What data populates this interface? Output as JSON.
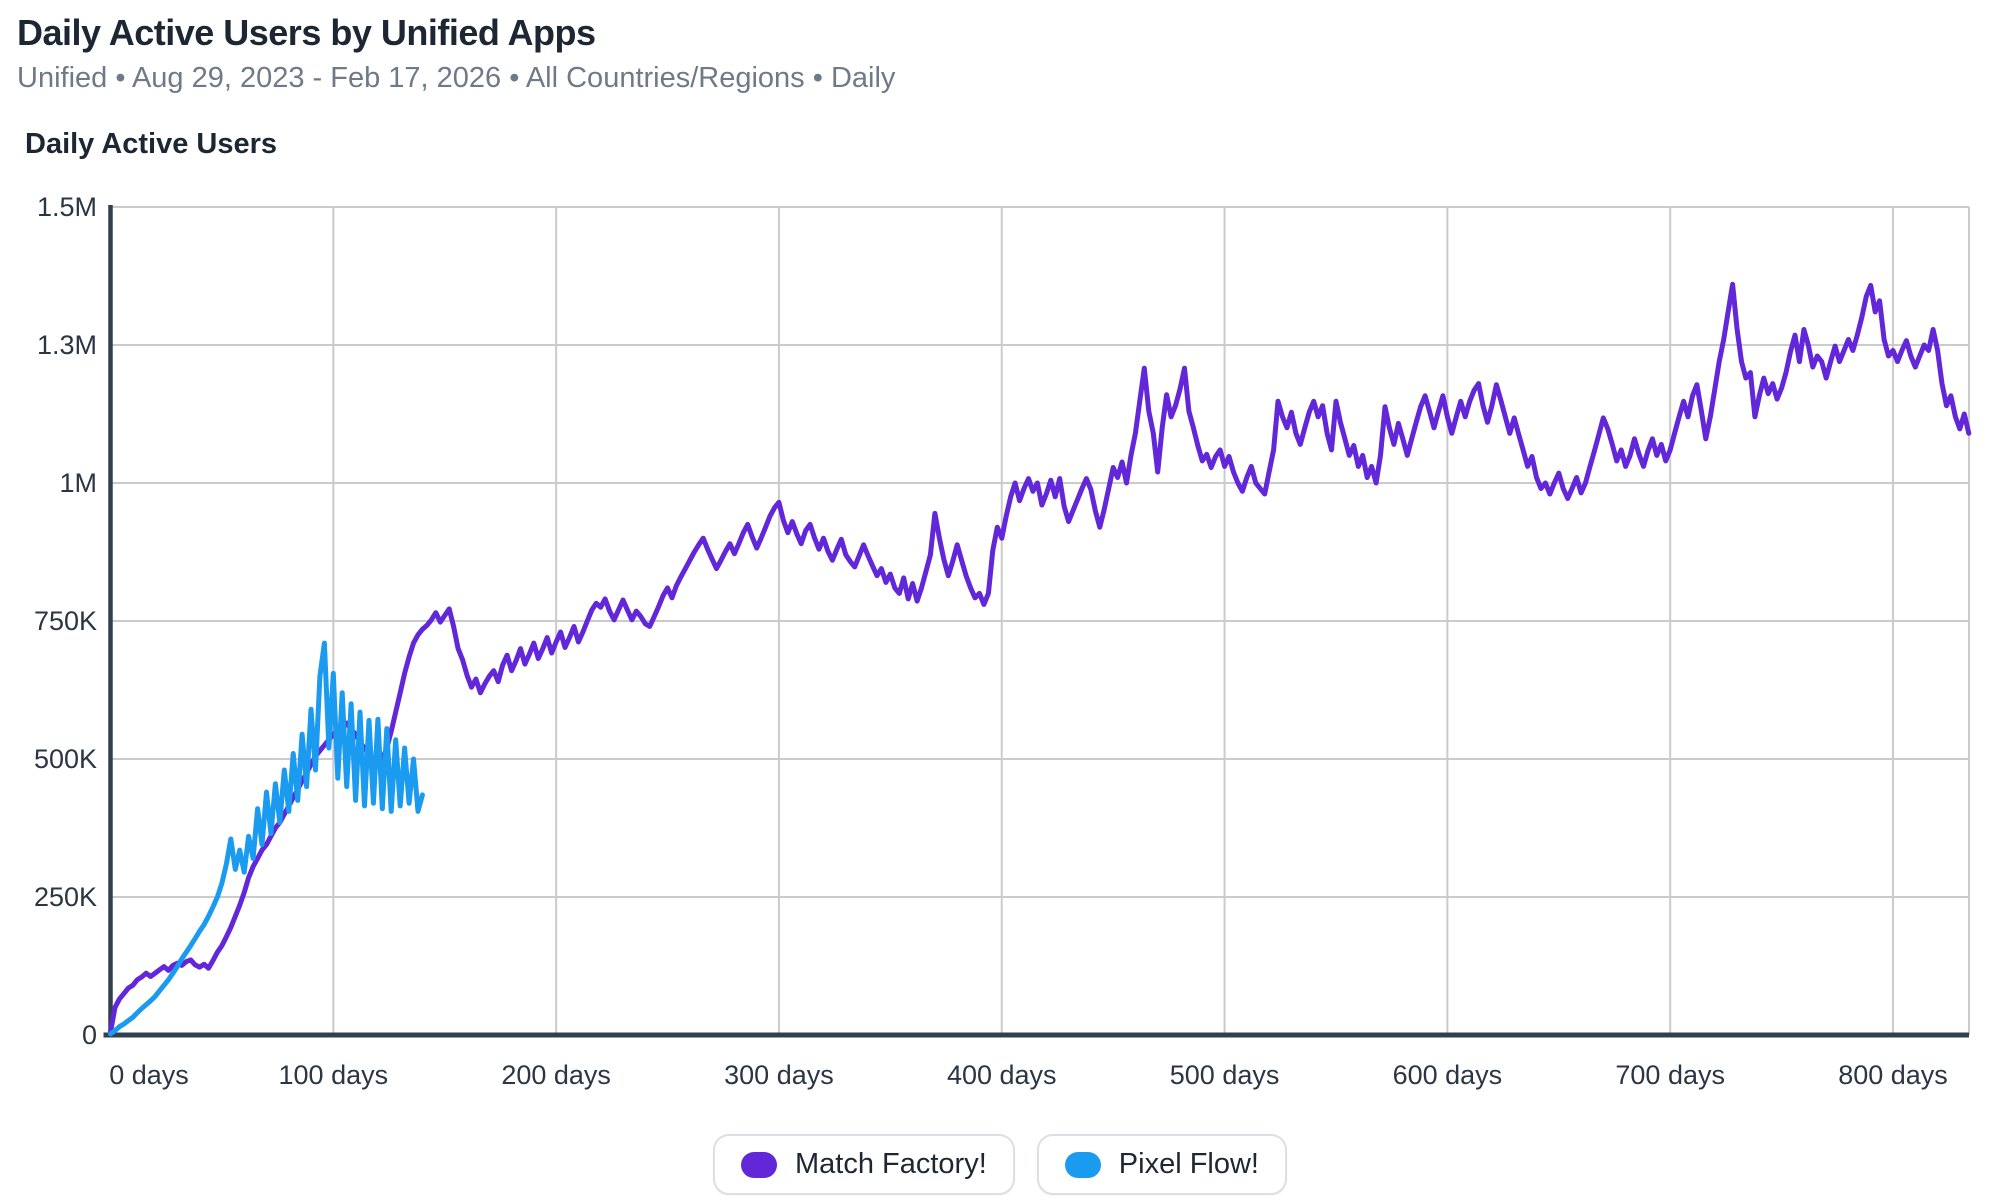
{
  "header": {
    "title": "Daily Active Users by Unified Apps",
    "subtitle": "Unified • Aug 29, 2023 - Feb 17, 2026 • All Countries/Regions • Daily"
  },
  "colors": {
    "axis": "#31404f",
    "grid": "#cbcbcb",
    "tick_text": "#2b3644",
    "title_text": "#1c2733",
    "subtitle_text": "#6e7a87",
    "match_factory": "#6127d8",
    "pixel_flow": "#1b9bf0"
  },
  "chart_data": {
    "type": "line",
    "title": "Daily Active Users",
    "xlabel": "",
    "ylabel": "",
    "x_unit": "days",
    "value_unit": "millions of users",
    "xlim": [
      0,
      834
    ],
    "ylim": [
      0,
      1.5
    ],
    "grid": true,
    "legend_position": "bottom",
    "x_ticks": [
      {
        "value": 0,
        "label": "0 days"
      },
      {
        "value": 100,
        "label": "100 days"
      },
      {
        "value": 200,
        "label": "200 days"
      },
      {
        "value": 300,
        "label": "300 days"
      },
      {
        "value": 400,
        "label": "400 days"
      },
      {
        "value": 500,
        "label": "500 days"
      },
      {
        "value": 600,
        "label": "600 days"
      },
      {
        "value": 700,
        "label": "700 days"
      },
      {
        "value": 800,
        "label": "800 days"
      }
    ],
    "y_ticks": [
      {
        "value": 0,
        "label": "0"
      },
      {
        "value": 0.25,
        "label": "250K"
      },
      {
        "value": 0.5,
        "label": "500K"
      },
      {
        "value": 0.75,
        "label": "750K"
      },
      {
        "value": 1.0,
        "label": "1M"
      },
      {
        "value": 1.25,
        "label": "1.3M"
      },
      {
        "value": 1.5,
        "label": "1.5M"
      }
    ],
    "series": [
      {
        "name": "Match Factory!",
        "color": "#6127d8",
        "start_day": 0,
        "day_step": 2,
        "values": [
          0.005,
          0.05,
          0.065,
          0.075,
          0.085,
          0.09,
          0.1,
          0.105,
          0.112,
          0.106,
          0.112,
          0.118,
          0.124,
          0.117,
          0.126,
          0.13,
          0.126,
          0.133,
          0.136,
          0.127,
          0.123,
          0.128,
          0.121,
          0.135,
          0.15,
          0.162,
          0.178,
          0.195,
          0.215,
          0.235,
          0.258,
          0.285,
          0.305,
          0.32,
          0.335,
          0.345,
          0.36,
          0.375,
          0.385,
          0.4,
          0.415,
          0.43,
          0.445,
          0.46,
          0.475,
          0.49,
          0.505,
          0.515,
          0.525,
          0.535,
          0.545,
          0.552,
          0.56,
          0.565,
          0.553,
          0.545,
          0.53,
          0.52,
          0.51,
          0.5,
          0.49,
          0.5,
          0.52,
          0.55,
          0.585,
          0.62,
          0.655,
          0.685,
          0.71,
          0.725,
          0.735,
          0.742,
          0.752,
          0.765,
          0.748,
          0.76,
          0.772,
          0.74,
          0.7,
          0.68,
          0.652,
          0.63,
          0.645,
          0.62,
          0.636,
          0.65,
          0.66,
          0.64,
          0.67,
          0.688,
          0.66,
          0.678,
          0.7,
          0.672,
          0.69,
          0.71,
          0.682,
          0.7,
          0.72,
          0.692,
          0.712,
          0.73,
          0.702,
          0.72,
          0.74,
          0.712,
          0.73,
          0.75,
          0.77,
          0.782,
          0.775,
          0.79,
          0.768,
          0.752,
          0.77,
          0.788,
          0.77,
          0.752,
          0.768,
          0.758,
          0.745,
          0.74,
          0.758,
          0.776,
          0.796,
          0.81,
          0.792,
          0.814,
          0.83,
          0.845,
          0.86,
          0.875,
          0.888,
          0.9,
          0.88,
          0.862,
          0.845,
          0.86,
          0.876,
          0.89,
          0.872,
          0.89,
          0.91,
          0.925,
          0.902,
          0.882,
          0.9,
          0.92,
          0.94,
          0.955,
          0.965,
          0.932,
          0.91,
          0.93,
          0.908,
          0.89,
          0.914,
          0.925,
          0.9,
          0.88,
          0.9,
          0.876,
          0.86,
          0.88,
          0.898,
          0.87,
          0.858,
          0.848,
          0.868,
          0.888,
          0.868,
          0.85,
          0.832,
          0.845,
          0.82,
          0.835,
          0.81,
          0.8,
          0.828,
          0.79,
          0.818,
          0.786,
          0.81,
          0.84,
          0.87,
          0.945,
          0.9,
          0.862,
          0.832,
          0.858,
          0.888,
          0.86,
          0.832,
          0.81,
          0.792,
          0.8,
          0.78,
          0.8,
          0.878,
          0.92,
          0.9,
          0.94,
          0.975,
          1.0,
          0.968,
          0.99,
          1.008,
          0.985,
          1.0,
          0.96,
          0.98,
          1.005,
          0.975,
          1.008,
          0.958,
          0.93,
          0.95,
          0.97,
          0.99,
          1.008,
          0.988,
          0.95,
          0.92,
          0.952,
          0.99,
          1.028,
          1.01,
          1.038,
          1.0,
          1.05,
          1.09,
          1.15,
          1.208,
          1.13,
          1.09,
          1.02,
          1.1,
          1.16,
          1.12,
          1.14,
          1.17,
          1.208,
          1.13,
          1.1,
          1.068,
          1.04,
          1.052,
          1.028,
          1.048,
          1.06,
          1.03,
          1.048,
          1.02,
          1.0,
          0.985,
          1.01,
          1.03,
          1.0,
          0.99,
          0.98,
          1.02,
          1.06,
          1.148,
          1.12,
          1.1,
          1.128,
          1.09,
          1.07,
          1.1,
          1.128,
          1.148,
          1.12,
          1.14,
          1.09,
          1.06,
          1.148,
          1.11,
          1.08,
          1.05,
          1.068,
          1.03,
          1.05,
          1.01,
          1.03,
          1.0,
          1.05,
          1.138,
          1.1,
          1.07,
          1.108,
          1.08,
          1.05,
          1.08,
          1.11,
          1.138,
          1.158,
          1.13,
          1.1,
          1.13,
          1.158,
          1.12,
          1.09,
          1.12,
          1.148,
          1.12,
          1.148,
          1.168,
          1.18,
          1.14,
          1.11,
          1.14,
          1.178,
          1.15,
          1.12,
          1.09,
          1.118,
          1.088,
          1.06,
          1.03,
          1.048,
          1.01,
          0.99,
          1.0,
          0.98,
          1.0,
          1.018,
          0.99,
          0.972,
          0.99,
          1.01,
          0.982,
          1.0,
          1.03,
          1.058,
          1.088,
          1.118,
          1.098,
          1.07,
          1.04,
          1.06,
          1.03,
          1.05,
          1.08,
          1.052,
          1.03,
          1.058,
          1.08,
          1.05,
          1.07,
          1.04,
          1.06,
          1.09,
          1.12,
          1.148,
          1.12,
          1.158,
          1.178,
          1.13,
          1.08,
          1.12,
          1.17,
          1.22,
          1.26,
          1.31,
          1.36,
          1.28,
          1.22,
          1.19,
          1.2,
          1.12,
          1.158,
          1.19,
          1.162,
          1.18,
          1.152,
          1.172,
          1.2,
          1.238,
          1.268,
          1.22,
          1.278,
          1.25,
          1.21,
          1.23,
          1.22,
          1.19,
          1.22,
          1.248,
          1.22,
          1.24,
          1.26,
          1.24,
          1.268,
          1.3,
          1.338,
          1.358,
          1.31,
          1.33,
          1.26,
          1.23,
          1.24,
          1.22,
          1.24,
          1.258,
          1.23,
          1.21,
          1.23,
          1.25,
          1.24,
          1.278,
          1.24,
          1.18,
          1.14,
          1.158,
          1.12,
          1.098,
          1.125,
          1.09
        ]
      },
      {
        "name": "Pixel Flow!",
        "color": "#1b9bf0",
        "start_day": 0,
        "day_step": 2,
        "values": [
          0.002,
          0.008,
          0.015,
          0.02,
          0.026,
          0.032,
          0.04,
          0.048,
          0.055,
          0.062,
          0.07,
          0.08,
          0.09,
          0.1,
          0.112,
          0.124,
          0.138,
          0.15,
          0.162,
          0.175,
          0.188,
          0.2,
          0.215,
          0.232,
          0.25,
          0.275,
          0.31,
          0.355,
          0.3,
          0.335,
          0.295,
          0.36,
          0.32,
          0.41,
          0.345,
          0.44,
          0.365,
          0.455,
          0.385,
          0.48,
          0.405,
          0.51,
          0.425,
          0.545,
          0.45,
          0.59,
          0.48,
          0.65,
          0.71,
          0.52,
          0.655,
          0.465,
          0.62,
          0.45,
          0.6,
          0.425,
          0.585,
          0.415,
          0.57,
          0.42,
          0.572,
          0.41,
          0.555,
          0.405,
          0.535,
          0.415,
          0.52,
          0.42,
          0.5,
          0.405,
          0.435
        ]
      }
    ]
  },
  "plot_geometry_note": "y axis 0 to 1.5M, x axis 0 to ~834 days"
}
